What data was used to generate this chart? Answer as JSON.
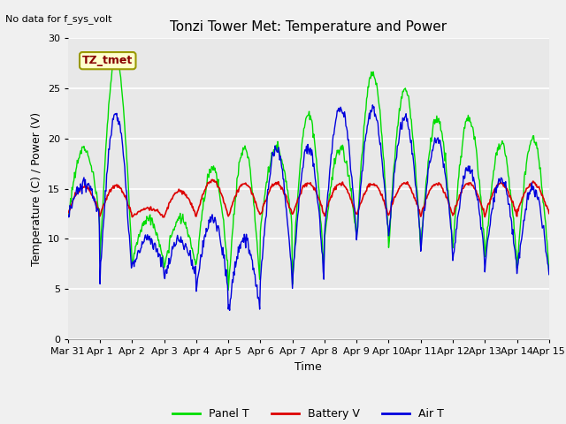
{
  "title": "Tonzi Tower Met: Temperature and Power",
  "top_left_text": "No data for f_sys_volt",
  "xlabel": "Time",
  "ylabel": "Temperature (C) / Power (V)",
  "ylim": [
    0,
    30
  ],
  "yticks": [
    0,
    5,
    10,
    15,
    20,
    25,
    30
  ],
  "xtick_labels": [
    "Mar 31",
    "Apr 1",
    "Apr 2",
    "Apr 3",
    "Apr 4",
    "Apr 5",
    "Apr 6",
    "Apr 7",
    "Apr 8",
    "Apr 9",
    "Apr 10",
    "Apr 11",
    "Apr 12",
    "Apr 13",
    "Apr 14",
    "Apr 15"
  ],
  "legend_labels": [
    "Panel T",
    "Battery V",
    "Air T"
  ],
  "line_colors": [
    "#00dd00",
    "#dd0000",
    "#0000dd"
  ],
  "annotation_box_text": "TZ_tmet",
  "annotation_box_facecolor": "#ffffcc",
  "annotation_box_edgecolor": "#999900",
  "plot_bg_color": "#e8e8e8",
  "fig_bg_color": "#f0f0f0",
  "grid_color": "#ffffff",
  "title_fontsize": 11,
  "axis_label_fontsize": 9,
  "tick_fontsize": 8,
  "legend_fontsize": 9,
  "annot_fontsize": 9
}
